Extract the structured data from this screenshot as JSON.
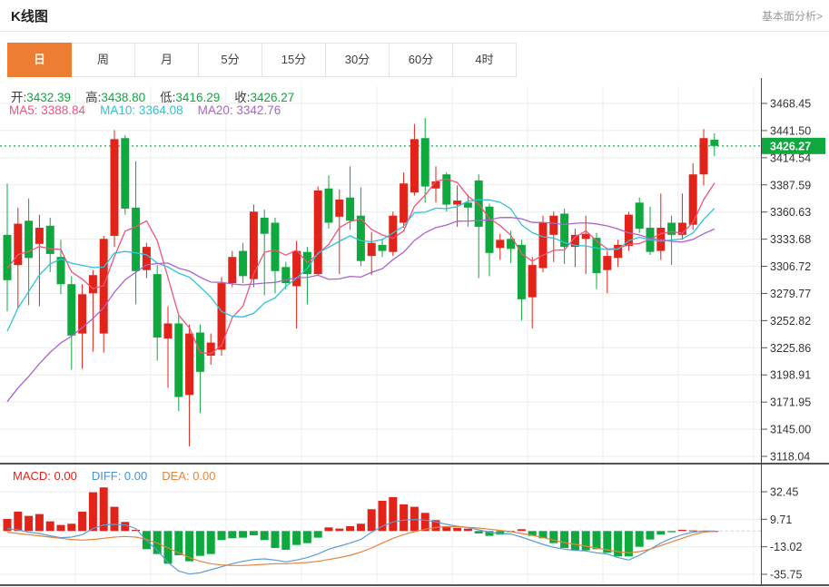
{
  "header": {
    "title": "K线图",
    "link": "基本面分析>"
  },
  "tabs": [
    {
      "label": "日",
      "active": true
    },
    {
      "label": "周",
      "active": false
    },
    {
      "label": "月",
      "active": false
    },
    {
      "label": "5分",
      "active": false
    },
    {
      "label": "15分",
      "active": false
    },
    {
      "label": "30分",
      "active": false
    },
    {
      "label": "60分",
      "active": false
    },
    {
      "label": "4时",
      "active": false
    }
  ],
  "legend": {
    "ohlc": [
      {
        "label": "开:",
        "value": "3432.39"
      },
      {
        "label": "高:",
        "value": "3438.80"
      },
      {
        "label": "低:",
        "value": "3416.29"
      },
      {
        "label": "收:",
        "value": "3426.27"
      }
    ],
    "ma": [
      {
        "label": "MA5:",
        "value": "3388.84",
        "color": "#f0547a"
      },
      {
        "label": "MA10:",
        "value": "3364.08",
        "color": "#30c3d6"
      },
      {
        "label": "MA20:",
        "value": "3342.76",
        "color": "#ab63ce"
      }
    ],
    "macd": [
      {
        "label": "MACD:",
        "value": "0.00",
        "color": "#e2231a"
      },
      {
        "label": "DIFF:",
        "value": "0.00",
        "color": "#4a90d9"
      },
      {
        "label": "DEA:",
        "value": "0.00",
        "color": "#e8823a"
      }
    ]
  },
  "colors": {
    "up": "#e2231a",
    "down": "#0ea83e",
    "badge": "#0ea83e",
    "badge_text": "#ffffff",
    "dotted_price_line": "#3fbe68",
    "grid": "#ececec",
    "axis": "#444444",
    "tick": "#555555",
    "axis_text": "#333333",
    "panel_border": "#1a1a1a",
    "value_text": "#0ea83e",
    "diff_line": "#5b9bd5",
    "dea_line": "#e8823a",
    "zero_dash": "#b9d3ee",
    "tab_active": "#ec7d33"
  },
  "chart_data": {
    "type": "candlestick",
    "title": "K线图",
    "interval_selected": "日",
    "grid": true,
    "x_axis_labels_visible": false,
    "price_axis_labels": [
      "3468.45",
      "3441.50",
      "3414.54",
      "3387.59",
      "3360.63",
      "3333.68",
      "3306.72",
      "3279.77",
      "3252.82",
      "3225.86",
      "3198.91",
      "3171.95",
      "3145.00",
      "3118.04"
    ],
    "last_price": "3426.27",
    "ohlc_legend": {
      "open": 3432.39,
      "high": 3438.8,
      "low": 3416.29,
      "close": 3426.27
    },
    "ma_legend": {
      "ma5": 3388.84,
      "ma10": 3364.08,
      "ma20": 3342.76
    },
    "ma_periods": [
      5,
      10,
      20
    ],
    "ma_seed_closes": [
      3080,
      3085,
      3090,
      3095,
      3100,
      3105,
      3110,
      3115,
      3120,
      3125,
      3120,
      3150,
      3180,
      3210,
      3240,
      3280,
      3300,
      3320,
      3330
    ],
    "candles_ohlc": [
      [
        3338,
        3389,
        3262,
        3293
      ],
      [
        3308,
        3365,
        3265,
        3349
      ],
      [
        3352,
        3374,
        3268,
        3315
      ],
      [
        3329,
        3358,
        3267,
        3345
      ],
      [
        3347,
        3355,
        3301,
        3319
      ],
      [
        3316,
        3333,
        3279,
        3289
      ],
      [
        3289,
        3297,
        3204,
        3238
      ],
      [
        3240,
        3289,
        3205,
        3279
      ],
      [
        3280,
        3303,
        3222,
        3298
      ],
      [
        3240,
        3337,
        3221,
        3334
      ],
      [
        3337,
        3442,
        3326,
        3433
      ],
      [
        3434,
        3437,
        3358,
        3364
      ],
      [
        3365,
        3411,
        3269,
        3302
      ],
      [
        3303,
        3330,
        3295,
        3326
      ],
      [
        3299,
        3308,
        3213,
        3236
      ],
      [
        3235,
        3267,
        3186,
        3250
      ],
      [
        3250,
        3258,
        3163,
        3177
      ],
      [
        3179,
        3249,
        3128,
        3240
      ],
      [
        3241,
        3249,
        3161,
        3202
      ],
      [
        3218,
        3240,
        3209,
        3231
      ],
      [
        3224,
        3296,
        3218,
        3290
      ],
      [
        3290,
        3322,
        3286,
        3316
      ],
      [
        3322,
        3330,
        3290,
        3297
      ],
      [
        3294,
        3368,
        3286,
        3361
      ],
      [
        3355,
        3363,
        3278,
        3339
      ],
      [
        3350,
        3355,
        3280,
        3302
      ],
      [
        3306,
        3311,
        3284,
        3290
      ],
      [
        3287,
        3332,
        3245,
        3322
      ],
      [
        3321,
        3326,
        3269,
        3299
      ],
      [
        3299,
        3386,
        3297,
        3382
      ],
      [
        3384,
        3397,
        3344,
        3350
      ],
      [
        3356,
        3383,
        3299,
        3373
      ],
      [
        3375,
        3406,
        3343,
        3352
      ],
      [
        3357,
        3385,
        3307,
        3312
      ],
      [
        3317,
        3341,
        3298,
        3330
      ],
      [
        3328,
        3334,
        3316,
        3322
      ],
      [
        3321,
        3361,
        3317,
        3357
      ],
      [
        3350,
        3400,
        3345,
        3389
      ],
      [
        3380,
        3448,
        3377,
        3433
      ],
      [
        3434,
        3454,
        3370,
        3386
      ],
      [
        3384,
        3406,
        3370,
        3391
      ],
      [
        3398,
        3400,
        3361,
        3368
      ],
      [
        3368,
        3387,
        3346,
        3372
      ],
      [
        3370,
        3378,
        3346,
        3365
      ],
      [
        3392,
        3398,
        3295,
        3346
      ],
      [
        3366,
        3369,
        3297,
        3320
      ],
      [
        3325,
        3339,
        3313,
        3333
      ],
      [
        3334,
        3342,
        3310,
        3324
      ],
      [
        3328,
        3333,
        3253,
        3274
      ],
      [
        3276,
        3316,
        3245,
        3308
      ],
      [
        3305,
        3357,
        3301,
        3350
      ],
      [
        3338,
        3361,
        3311,
        3357
      ],
      [
        3359,
        3364,
        3309,
        3326
      ],
      [
        3326,
        3344,
        3306,
        3338
      ],
      [
        3334,
        3357,
        3299,
        3339
      ],
      [
        3335,
        3340,
        3284,
        3300
      ],
      [
        3303,
        3322,
        3280,
        3317
      ],
      [
        3315,
        3333,
        3306,
        3328
      ],
      [
        3327,
        3361,
        3322,
        3358
      ],
      [
        3370,
        3375,
        3340,
        3344
      ],
      [
        3345,
        3366,
        3318,
        3321
      ],
      [
        3322,
        3379,
        3313,
        3345
      ],
      [
        3350,
        3357,
        3308,
        3338
      ],
      [
        3338,
        3379,
        3333,
        3350
      ],
      [
        3348,
        3409,
        3343,
        3398
      ],
      [
        3398,
        3443,
        3387,
        3434
      ],
      [
        3432.39,
        3438.8,
        3416.29,
        3426.27
      ]
    ],
    "macd": {
      "axis_labels": [
        "32.45",
        "9.71",
        "-13.02",
        "-35.75"
      ],
      "legend": {
        "macd": 0.0,
        "diff": 0.0,
        "dea": 0.0
      },
      "bars": [
        10,
        16,
        12.5,
        14,
        8,
        5,
        6,
        16,
        32,
        36,
        20,
        7.5,
        1,
        -15,
        -19,
        -27,
        -20,
        -25,
        -20.5,
        -19,
        -7.5,
        -6,
        -5.5,
        -3.5,
        -7.5,
        -14,
        -15.5,
        -11.5,
        -10,
        -5.5,
        3,
        2,
        4,
        6,
        18,
        25,
        28,
        22,
        20,
        15,
        9,
        4,
        2.5,
        2,
        -2,
        -4,
        -3,
        -1,
        1.5,
        -4,
        -6,
        -10,
        -14,
        -16,
        -16,
        -15,
        -18,
        -21,
        -21,
        -13,
        -7,
        -3,
        -1,
        1,
        0.5,
        0.3,
        0
      ],
      "diff": [
        2,
        1,
        -1,
        -2,
        -4,
        -5.5,
        -5,
        -3,
        2,
        5,
        5.5,
        5,
        2,
        -8,
        -16,
        -26,
        -33,
        -35.5,
        -34.5,
        -32,
        -29.5,
        -27,
        -25,
        -23.5,
        -23,
        -24,
        -25.5,
        -24,
        -22,
        -19,
        -15,
        -12.5,
        -10,
        -7,
        -1,
        4,
        7.5,
        9,
        9.5,
        9,
        7.5,
        5.5,
        4,
        3,
        1,
        -1,
        -2,
        -2.5,
        -5,
        -8,
        -11,
        -13.5,
        -15,
        -16,
        -16.5,
        -18,
        -19,
        -22,
        -24,
        -20,
        -15,
        -10,
        -6,
        -3,
        -1,
        0,
        0
      ],
      "dea": [
        -1,
        -2,
        -3,
        -4,
        -5,
        -6,
        -7,
        -7.5,
        -7,
        -6,
        -5,
        -4.5,
        -5,
        -7,
        -10,
        -14,
        -18,
        -22,
        -25,
        -27,
        -28,
        -28.5,
        -28.5,
        -28,
        -27.5,
        -27,
        -27,
        -26.5,
        -26,
        -25,
        -23.5,
        -22,
        -20,
        -17.5,
        -14,
        -10,
        -6,
        -3,
        -0.5,
        1.5,
        3,
        3.5,
        3.5,
        3,
        2.5,
        1.5,
        0.5,
        -0.5,
        -2,
        -3.5,
        -5.5,
        -7.5,
        -9.5,
        -11,
        -12.5,
        -14,
        -15.5,
        -17,
        -18,
        -17,
        -15,
        -12,
        -9,
        -6,
        -3,
        -1,
        0
      ]
    }
  }
}
